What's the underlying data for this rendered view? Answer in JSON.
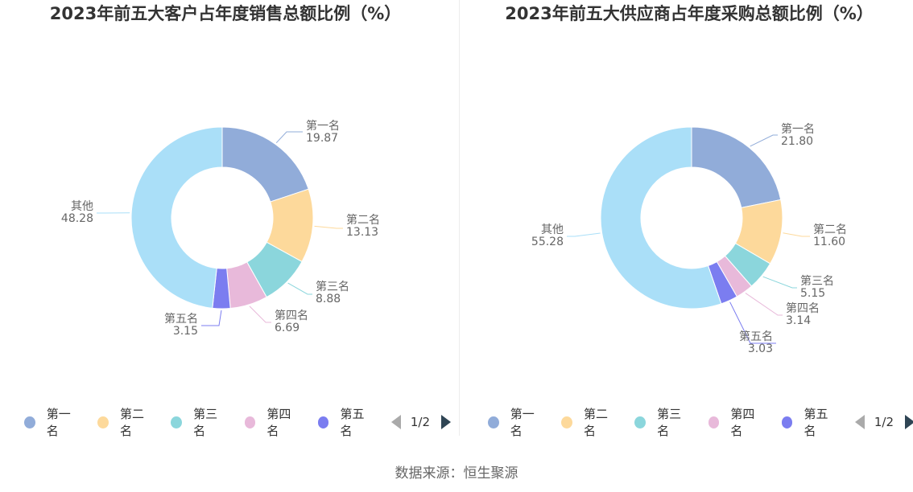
{
  "source": "数据来源：恒生聚源",
  "colors": {
    "palette": [
      "#91acd9",
      "#fdd99b",
      "#8bd6dc",
      "#e8b9da",
      "#7b7df0",
      "#aadff8"
    ]
  },
  "chart_data": [
    {
      "type": "pie",
      "title": "2023年前五大客户占年度销售总额比例（%）",
      "donut": true,
      "categories": [
        "第一名",
        "第二名",
        "第三名",
        "第四名",
        "第五名",
        "其他"
      ],
      "values": [
        19.87,
        13.13,
        8.88,
        6.69,
        3.15,
        48.28
      ],
      "value_labels": [
        "19.87",
        "13.13",
        "8.88",
        "6.69",
        "3.15",
        "48.28"
      ],
      "legend": {
        "placement": "bottom",
        "items": [
          "第一名",
          "第二名",
          "第三名",
          "第四名",
          "第五名"
        ],
        "page": "1/2"
      }
    },
    {
      "type": "pie",
      "title": "2023年前五大供应商占年度采购总额比例（%）",
      "donut": true,
      "categories": [
        "第一名",
        "第二名",
        "第三名",
        "第四名",
        "第五名",
        "其他"
      ],
      "values": [
        21.8,
        11.6,
        5.15,
        3.14,
        3.03,
        55.28
      ],
      "value_labels": [
        "21.80",
        "11.60",
        "5.15",
        "3.14",
        "3.03",
        "55.28"
      ],
      "legend": {
        "placement": "bottom",
        "items": [
          "第一名",
          "第二名",
          "第三名",
          "第四名",
          "第五名"
        ],
        "page": "1/2"
      }
    }
  ]
}
